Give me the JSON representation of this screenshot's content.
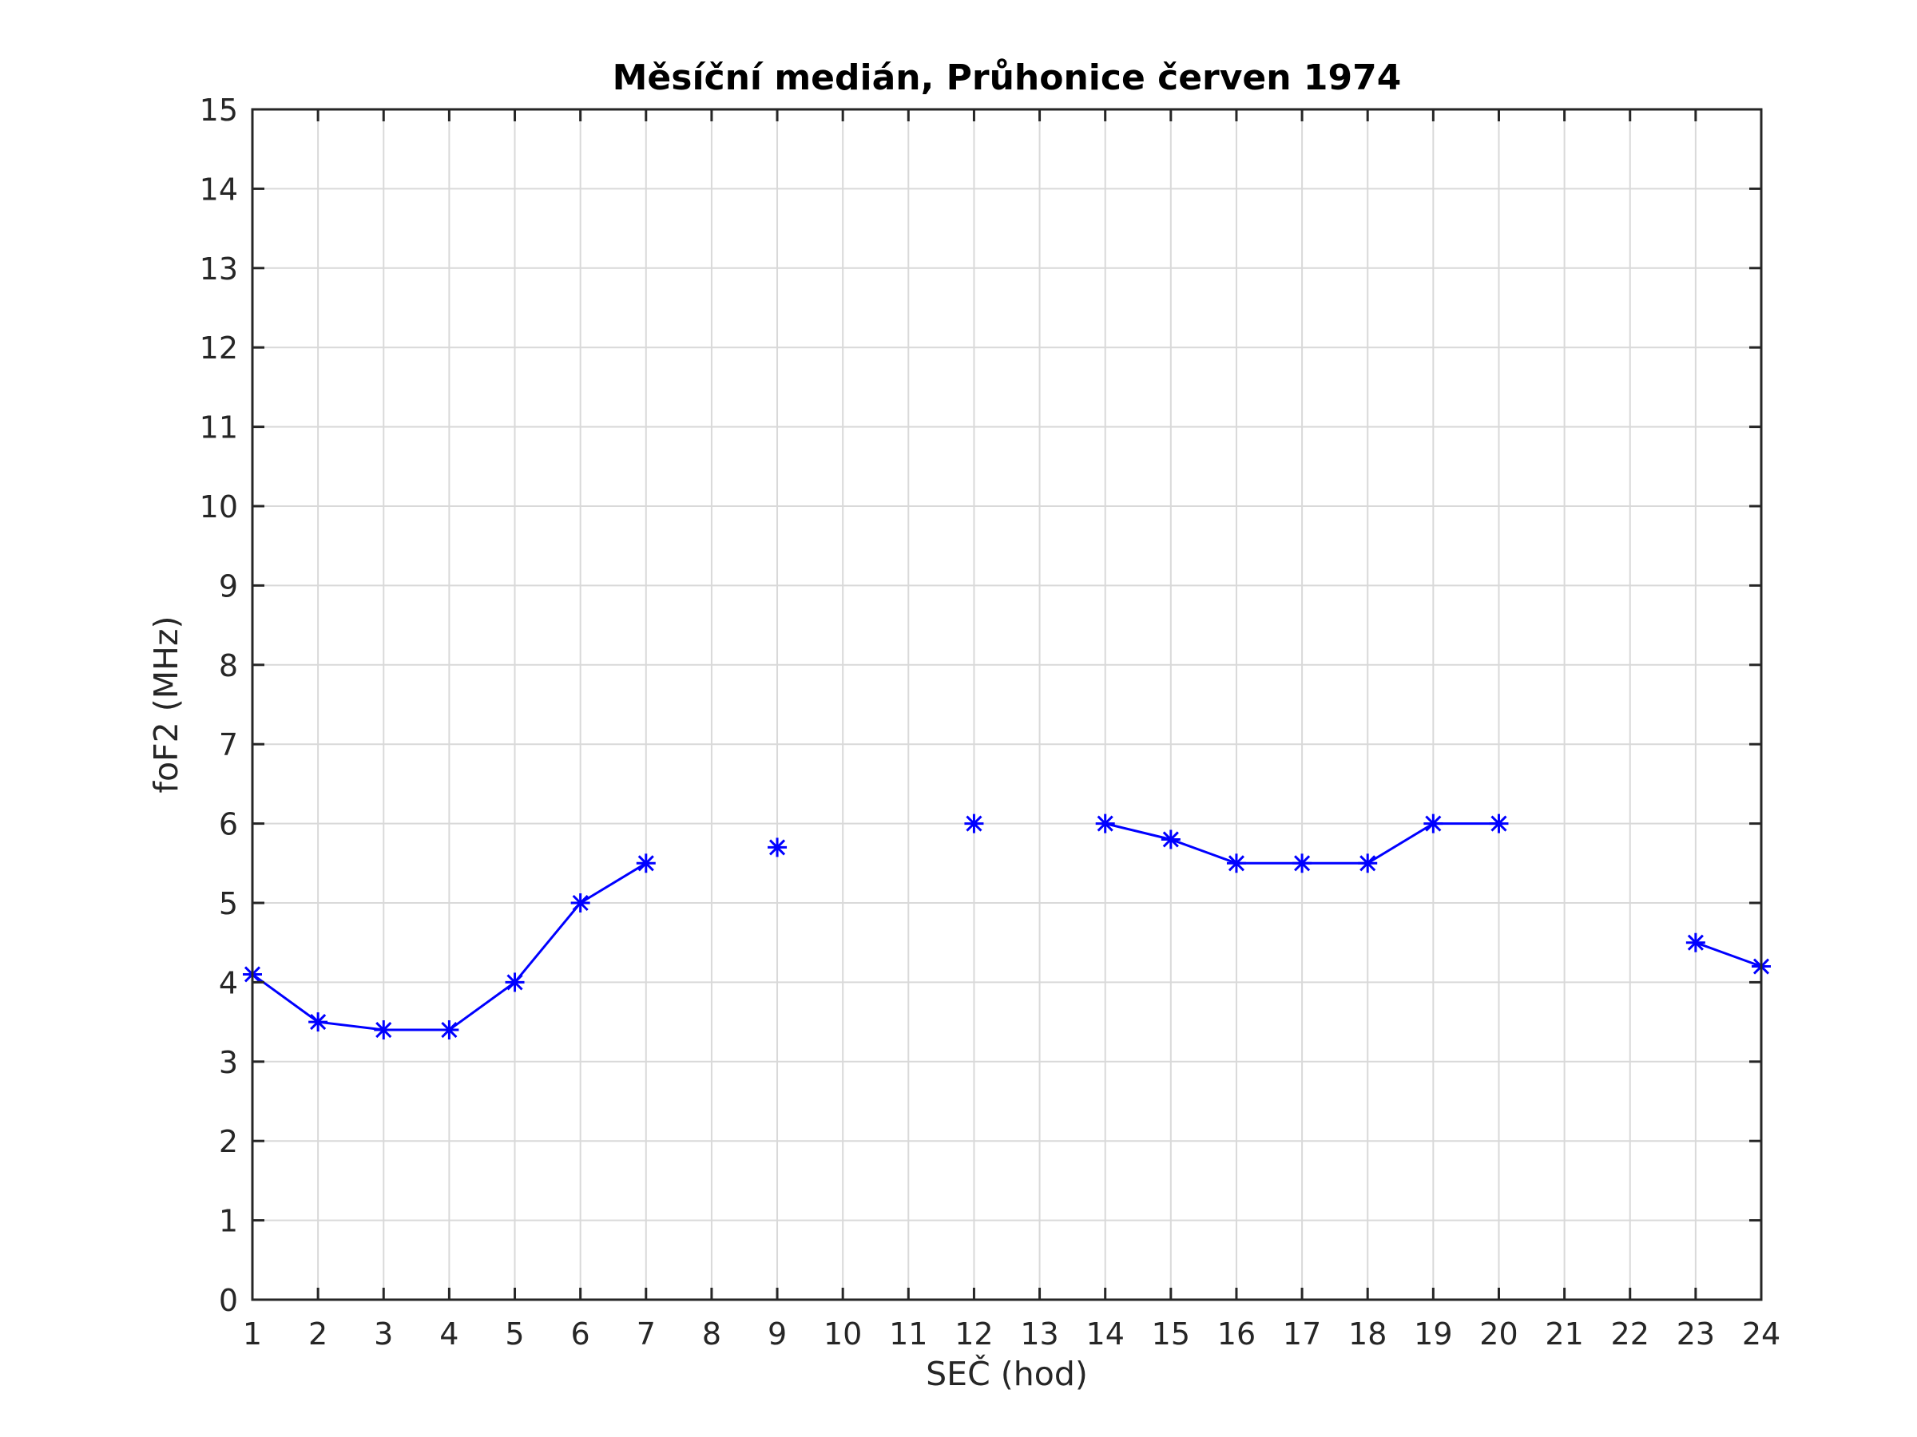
{
  "chart_data": {
    "type": "line",
    "title": "Měsíční medián, Průhonice červen 1974",
    "xlabel": "SEČ (hod)",
    "ylabel": "foF2 (MHz)",
    "xlim": [
      1,
      24
    ],
    "ylim": [
      0,
      15
    ],
    "xticks": [
      "1",
      "2",
      "3",
      "4",
      "5",
      "6",
      "7",
      "8",
      "9",
      "10",
      "11",
      "12",
      "13",
      "14",
      "15",
      "16",
      "17",
      "18",
      "19",
      "20",
      "21",
      "22",
      "23",
      "24"
    ],
    "yticks": [
      "0",
      "1",
      "2",
      "3",
      "4",
      "5",
      "6",
      "7",
      "8",
      "9",
      "10",
      "11",
      "12",
      "13",
      "14",
      "15"
    ],
    "grid": true,
    "marker": "asterisk",
    "series": [
      {
        "color": "#0000ff",
        "x": [
          1,
          2,
          3,
          4,
          5,
          6,
          7,
          8,
          9,
          10,
          11,
          12,
          13,
          14,
          15,
          16,
          17,
          18,
          19,
          20,
          21,
          22,
          23,
          24
        ],
        "y": [
          4.1,
          3.5,
          3.4,
          3.4,
          4.0,
          5.0,
          5.5,
          null,
          5.7,
          null,
          null,
          6.0,
          null,
          6.0,
          5.8,
          5.5,
          5.5,
          5.5,
          6.0,
          6.0,
          null,
          null,
          4.5,
          4.2
        ]
      }
    ]
  }
}
